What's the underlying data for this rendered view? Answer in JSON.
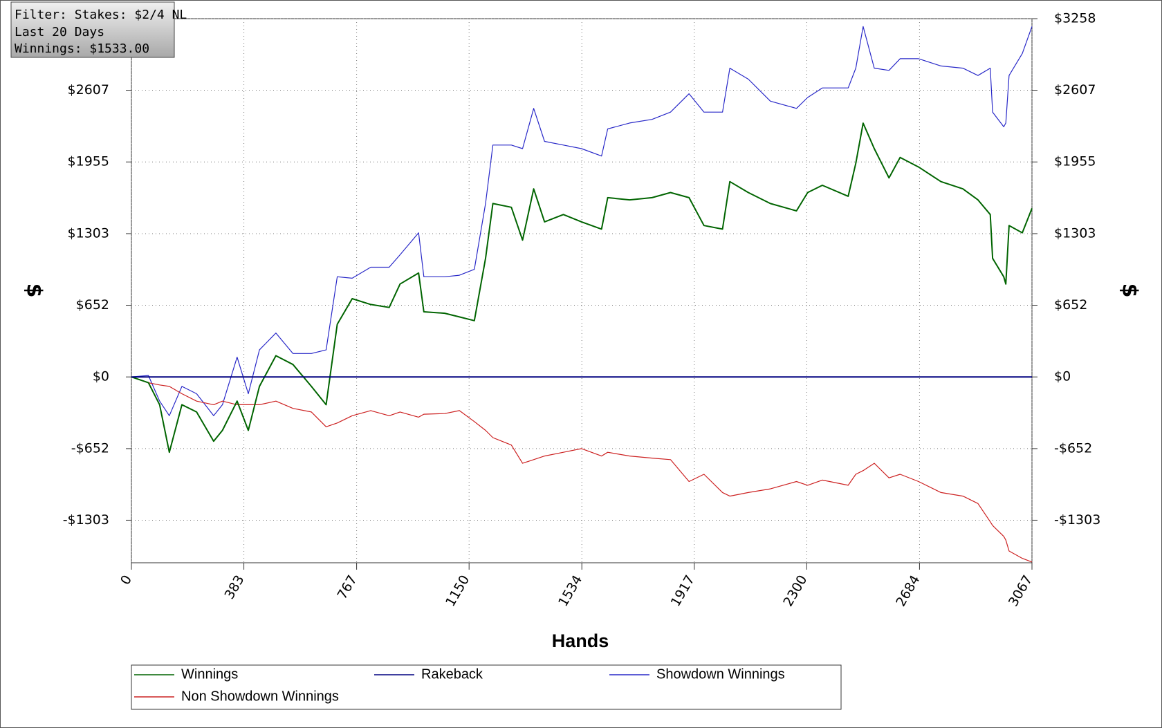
{
  "chart_data": {
    "type": "line",
    "filter": [
      "Filter: Stakes: $2/4 NL",
      "Last 20 Days",
      "Winnings: $1533.00"
    ],
    "xlabel": "Hands",
    "ylabel": "$",
    "xlim": [
      0,
      3067
    ],
    "xticks": [
      0,
      383,
      767,
      1150,
      1534,
      1917,
      2300,
      2684,
      3067
    ],
    "ylim": [
      -1690,
      3258
    ],
    "yticks": [
      {
        "value": -1303,
        "label": "-$1303"
      },
      {
        "value": -652,
        "label": "-$652"
      },
      {
        "value": 0,
        "label": "$0"
      },
      {
        "value": 652,
        "label": "$652"
      },
      {
        "value": 1303,
        "label": "$1303"
      },
      {
        "value": 1955,
        "label": "$1955"
      },
      {
        "value": 2607,
        "label": "$2607"
      },
      {
        "value": 3258,
        "label": "$3258"
      }
    ],
    "grid": true,
    "x": [
      0,
      58,
      96,
      129,
      172,
      222,
      280,
      310,
      360,
      398,
      436,
      492,
      550,
      613,
      663,
      701,
      752,
      815,
      878,
      915,
      978,
      996,
      1067,
      1117,
      1168,
      1206,
      1231,
      1294,
      1332,
      1370,
      1407,
      1471,
      1533,
      1601,
      1622,
      1697,
      1773,
      1836,
      1899,
      1950,
      2013,
      2038,
      2101,
      2176,
      2265,
      2303,
      2353,
      2441,
      2467,
      2492,
      2530,
      2580,
      2618,
      2681,
      2757,
      2832,
      2883,
      2925,
      2933,
      2971,
      2978,
      2989,
      3034,
      3067
    ],
    "series": [
      {
        "name": "Winnings",
        "color": "#006400",
        "width": 2,
        "values": [
          0,
          -53,
          -253,
          -685,
          -253,
          -319,
          -585,
          -486,
          -220,
          -486,
          -86,
          193,
          113,
          -86,
          -253,
          479,
          712,
          659,
          632,
          845,
          945,
          592,
          579,
          546,
          512,
          1078,
          1577,
          1543,
          1244,
          1710,
          1410,
          1477,
          1410,
          1344,
          1630,
          1610,
          1630,
          1677,
          1630,
          1377,
          1344,
          1776,
          1677,
          1577,
          1510,
          1677,
          1743,
          1643,
          1943,
          2308,
          2076,
          1810,
          1996,
          1909,
          1776,
          1710,
          1610,
          1477,
          1078,
          911,
          845,
          1377,
          1311,
          1533
        ]
      },
      {
        "name": "Rakeback",
        "color": "#000080",
        "width": 2,
        "values": [
          0,
          0,
          0,
          0,
          0,
          0,
          0,
          0,
          0,
          0,
          0,
          0,
          0,
          0,
          0,
          0,
          0,
          0,
          0,
          0,
          0,
          0,
          0,
          0,
          0,
          0,
          0,
          0,
          0,
          0,
          0,
          0,
          0,
          0,
          0,
          0,
          0,
          0,
          0,
          0,
          0,
          0,
          0,
          0,
          0,
          0,
          0,
          0,
          0,
          0,
          0,
          0,
          0,
          0,
          0,
          0,
          0,
          0,
          0,
          0,
          0,
          0,
          0,
          0
        ]
      },
      {
        "name": "Showdown Winnings",
        "color": "#2828c8",
        "width": 1.2,
        "values": [
          0,
          13,
          -220,
          -353,
          -86,
          -153,
          -353,
          -253,
          180,
          -153,
          246,
          399,
          213,
          213,
          246,
          911,
          898,
          998,
          998,
          1111,
          1311,
          911,
          911,
          925,
          978,
          1577,
          2109,
          2109,
          2076,
          2442,
          2142,
          2109,
          2076,
          2009,
          2255,
          2309,
          2342,
          2408,
          2575,
          2408,
          2408,
          2808,
          2708,
          2508,
          2442,
          2541,
          2628,
          2628,
          2808,
          3187,
          2808,
          2788,
          2894,
          2894,
          2828,
          2808,
          2741,
          2808,
          2408,
          2275,
          2309,
          2741,
          2941,
          3187
        ]
      },
      {
        "name": "Non Showdown Winnings",
        "color": "#cc2020",
        "width": 1.2,
        "values": [
          0,
          -53,
          -73,
          -86,
          -153,
          -220,
          -253,
          -220,
          -253,
          -253,
          -253,
          -220,
          -286,
          -319,
          -453,
          -419,
          -353,
          -306,
          -353,
          -319,
          -366,
          -339,
          -333,
          -306,
          -406,
          -486,
          -552,
          -619,
          -785,
          -752,
          -719,
          -685,
          -652,
          -719,
          -685,
          -719,
          -738,
          -752,
          -951,
          -885,
          -1051,
          -1084,
          -1051,
          -1018,
          -951,
          -985,
          -938,
          -985,
          -885,
          -852,
          -785,
          -918,
          -885,
          -951,
          -1051,
          -1084,
          -1151,
          -1317,
          -1351,
          -1450,
          -1484,
          -1583,
          -1650,
          -1683
        ]
      }
    ]
  }
}
